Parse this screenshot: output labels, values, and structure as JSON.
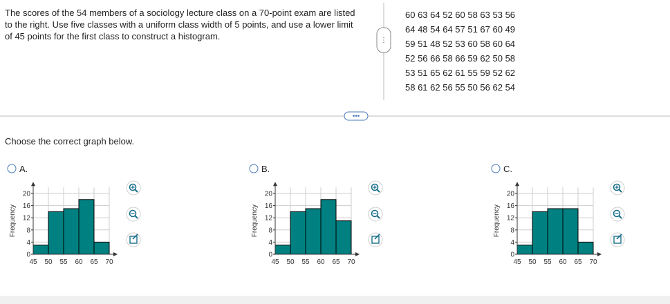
{
  "question": "The scores of the 54 members of a sociology lecture class on a 70-point exam are listed to the right. Use five classes with a uniform class width of 5 points, and use a lower limit of 45 points for the first class to construct a histogram.",
  "data_rows": [
    "60 63 64 52 60 58 63 53 56",
    "64 48 54 64 57 51 67 60 49",
    "59 51 48 52 53 60 58 60 64",
    "52 56 66 58 66 59 62 50 58",
    "53 51 65 62 61 55 59 52 62",
    "58 61 62 56 55 50 56 62 54"
  ],
  "prompt": "Choose the correct graph below.",
  "option_labels": [
    "A.",
    "B.",
    "C."
  ],
  "chart_data": [
    {
      "type": "histogram",
      "ylabel": "Frequency",
      "bins": [
        45,
        50,
        55,
        60,
        65,
        70
      ],
      "values": [
        3,
        14,
        15,
        18,
        4
      ],
      "color": "#008080",
      "xlim": [
        45,
        70
      ],
      "ylim": [
        0,
        22
      ],
      "xticks": [
        45,
        50,
        55,
        60,
        65,
        70
      ],
      "yticks": [
        0,
        4,
        8,
        12,
        16,
        20
      ],
      "grid": true
    },
    {
      "type": "histogram",
      "ylabel": "Frequency",
      "bins": [
        45,
        50,
        55,
        60,
        65,
        70
      ],
      "values": [
        3,
        14,
        15,
        18,
        11
      ],
      "color": "#008080",
      "xlim": [
        45,
        70
      ],
      "ylim": [
        0,
        22
      ],
      "xticks": [
        45,
        50,
        55,
        60,
        65,
        70
      ],
      "yticks": [
        0,
        4,
        8,
        12,
        16,
        20
      ],
      "grid": true
    },
    {
      "type": "histogram",
      "ylabel": "Frequency",
      "bins": [
        45,
        50,
        55,
        60,
        65,
        70
      ],
      "values": [
        3,
        14,
        15,
        15,
        4
      ],
      "color": "#008080",
      "xlim": [
        45,
        70
      ],
      "ylim": [
        0,
        22
      ],
      "xticks": [
        45,
        50,
        55,
        60,
        65,
        70
      ],
      "yticks": [
        0,
        4,
        8,
        12,
        16,
        20
      ],
      "grid": true
    }
  ]
}
